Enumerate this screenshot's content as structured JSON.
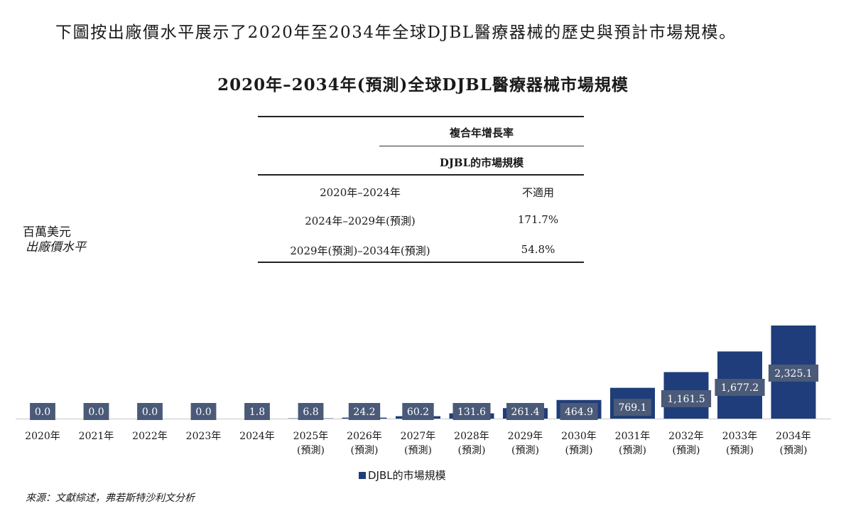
{
  "intro_text": "下圖按出廠價水平展示了2020年至2034年全球DJBL醫療器械的歷史與預計市場規模。",
  "cagr_table": {
    "header_top": "複合年增長率",
    "header_sub": "DJBL的市場規模",
    "rows": [
      {
        "period": "2020年–2024年",
        "value": "不適用"
      },
      {
        "period": "2024年–2029年(預測)",
        "value": "171.7%"
      },
      {
        "period": "2029年(預測)–2034年(預測)",
        "value": "54.8%"
      }
    ]
  },
  "y_unit_line1": "百萬美元",
  "y_unit_line2": "出廠價水平",
  "source": "來源：文獻綜述，弗若斯特沙利文分析",
  "colors": {
    "bar": "#1f3d7a",
    "label_box": "#4a5a78",
    "label_text": "#ffffff"
  },
  "chart_data": {
    "type": "bar",
    "title": "2020年–2034年(預測)全球DJBL醫療器械市場規模",
    "categories": [
      "2020年",
      "2021年",
      "2022年",
      "2023年",
      "2024年",
      "2025年",
      "2026年",
      "2027年",
      "2028年",
      "2029年",
      "2030年",
      "2031年",
      "2032年",
      "2033年",
      "2034年"
    ],
    "category_sublabels": [
      "",
      "",
      "",
      "",
      "",
      "(預測)",
      "(預測)",
      "(預測)",
      "(預測)",
      "(預測)",
      "(預測)",
      "(預測)",
      "(預測)",
      "(預測)",
      "(預測)"
    ],
    "series": [
      {
        "name": "DJBL的市場規模",
        "values": [
          0.0,
          0.0,
          0.0,
          0.0,
          1.8,
          6.8,
          24.2,
          60.2,
          131.6,
          261.4,
          464.9,
          769.1,
          1161.5,
          1677.2,
          2325.1
        ]
      }
    ],
    "data_labels": [
      "0.0",
      "0.0",
      "0.0",
      "0.0",
      "1.8",
      "6.8",
      "24.2",
      "60.2",
      "131.6",
      "261.4",
      "464.9",
      "769.1",
      "1,161.5",
      "1,677.2",
      "2,325.1"
    ],
    "legend": "bottom-center",
    "grid": false
  }
}
